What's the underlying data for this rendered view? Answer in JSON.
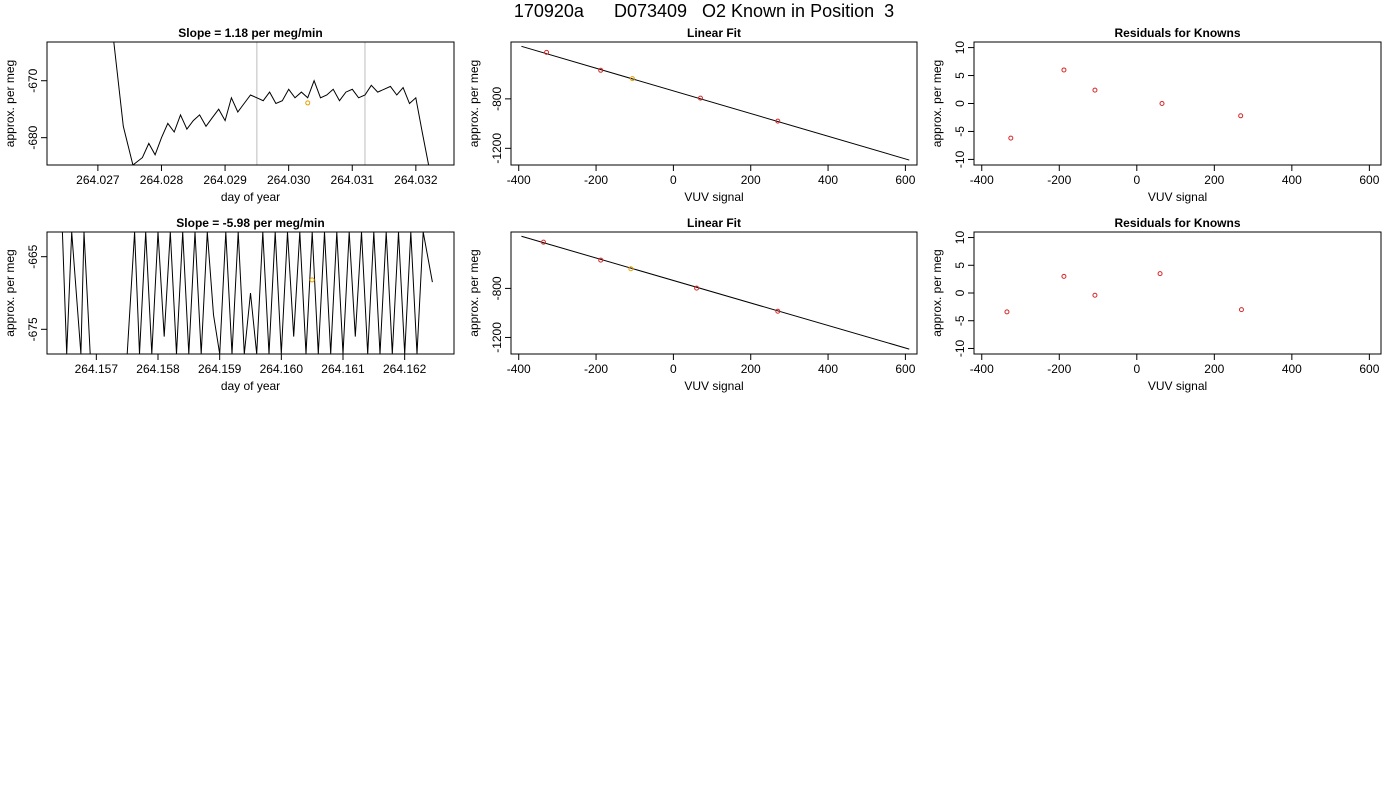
{
  "page": {
    "title": "170920a      D073409   O2 Known in Position  3"
  },
  "colors": {
    "trace": "#000000",
    "marker_orange": "#e69f00",
    "residual_red": "#d62728",
    "vline_gray": "#bdbdbd",
    "axis": "#000000"
  },
  "chart_data": [
    {
      "type": "line",
      "title": "Slope =  1.18  per meg/min",
      "xlabel": "day of year",
      "ylabel": "approx. per meg",
      "xlim": [
        264.0262,
        264.0326
      ],
      "ylim": [
        -684.8,
        -663.2
      ],
      "xticks": [
        264.027,
        264.028,
        264.029,
        264.03,
        264.031,
        264.032
      ],
      "xtick_labels": [
        "264.027",
        "264.028",
        "264.029",
        "264.030",
        "264.031",
        "264.032"
      ],
      "yticks": [
        -670,
        -680
      ],
      "ytick_labels": [
        "-670",
        "-680"
      ],
      "vlines": [
        264.0295,
        264.0312
      ],
      "trace_x": [
        264.02725,
        264.0274,
        264.02755,
        264.0277,
        264.0278,
        264.0279,
        264.028,
        264.0281,
        264.0282,
        264.0283,
        264.0284,
        264.0285,
        264.0286,
        264.0287,
        264.0288,
        264.0289,
        264.029,
        264.0291,
        264.0292,
        264.0293,
        264.0294,
        264.0295,
        264.0296,
        264.0297,
        264.0298,
        264.0299,
        264.03,
        264.0301,
        264.0302,
        264.0303,
        264.0304,
        264.0305,
        264.0306,
        264.0307,
        264.0308,
        264.0309,
        264.031,
        264.0311,
        264.0312,
        264.0313,
        264.0314,
        264.0315,
        264.0316,
        264.0317,
        264.0318,
        264.0319,
        264.032,
        264.0321,
        264.0322
      ],
      "trace_y": [
        -663.2,
        -678,
        -684.8,
        -683.5,
        -681,
        -683,
        -680,
        -677.5,
        -679,
        -676,
        -678.5,
        -677,
        -676,
        -678,
        -676.5,
        -675,
        -677,
        -673,
        -675.5,
        -674,
        -672.5,
        -673,
        -673.5,
        -672,
        -674,
        -673.5,
        -671.5,
        -673,
        -672,
        -673,
        -670,
        -673,
        -672.5,
        -671.5,
        -673.5,
        -672,
        -671.5,
        -673,
        -672.5,
        -670.8,
        -672,
        -671.5,
        -671,
        -672.5,
        -671.2,
        -674,
        -673,
        -679,
        -684.8
      ],
      "orange_point": {
        "x": 264.0303,
        "y": -673.9
      }
    },
    {
      "type": "scatter",
      "title": "Linear Fit",
      "xlabel": "VUV signal",
      "ylabel": "approx. per meg",
      "xlim": [
        -420,
        630
      ],
      "ylim": [
        -1335,
        -340
      ],
      "xticks": [
        -400,
        -200,
        0,
        200,
        400,
        600
      ],
      "xtick_labels": [
        "-400",
        "-200",
        "0",
        "200",
        "400",
        "600"
      ],
      "yticks": [
        -800,
        -1200
      ],
      "ytick_labels": [
        "-800",
        "-1200"
      ],
      "points_x": [
        -328,
        -188,
        -106,
        70,
        270
      ],
      "points_y": [
        -424,
        -569,
        -636,
        -794,
        -980
      ],
      "orange_x": -106,
      "fit_line": {
        "x": [
          -393,
          610
        ],
        "y": [
          -375,
          -1295
        ]
      }
    },
    {
      "type": "scatter",
      "title": "Residuals for Knowns",
      "xlabel": "VUV signal",
      "ylabel": "approx. per meg",
      "xlim": [
        -420,
        630
      ],
      "ylim": [
        -11,
        11
      ],
      "xticks": [
        -400,
        -200,
        0,
        200,
        400,
        600
      ],
      "xtick_labels": [
        "-400",
        "-200",
        "0",
        "200",
        "400",
        "600"
      ],
      "yticks": [
        10,
        5,
        0,
        -5,
        -10
      ],
      "ytick_labels": [
        "10",
        "5",
        "0",
        "-5",
        "-10"
      ],
      "points_x": [
        -325,
        -188,
        -108,
        65,
        268
      ],
      "points_y": [
        -6.2,
        6.0,
        2.4,
        0.0,
        -2.2
      ]
    },
    {
      "type": "line",
      "title": "Slope =  -5.98  per meg/min",
      "xlabel": "day of year",
      "ylabel": "approx. per meg",
      "xlim": [
        264.1562,
        264.1628
      ],
      "ylim": [
        -678.4,
        -661.6
      ],
      "xticks": [
        264.157,
        264.158,
        264.159,
        264.16,
        264.161,
        264.162
      ],
      "xtick_labels": [
        "264.157",
        "264.158",
        "264.159",
        "264.160",
        "264.161",
        "264.162"
      ],
      "yticks": [
        -665,
        -675
      ],
      "ytick_labels": [
        "-665",
        "-675"
      ],
      "trace_x": [
        264.15645,
        264.15652,
        264.1566,
        264.15675,
        264.1568,
        264.1569,
        264.1575,
        264.15762,
        264.1577,
        264.1578,
        264.1579,
        264.158,
        264.1581,
        264.1582,
        264.1583,
        264.1584,
        264.1585,
        264.1586,
        264.1587,
        264.1588,
        264.1589,
        264.159,
        264.1591,
        264.1592,
        264.1593,
        264.1594,
        264.1595,
        264.1596,
        264.1597,
        264.1598,
        264.1599,
        264.16,
        264.1601,
        264.1602,
        264.1603,
        264.1604,
        264.1605,
        264.1606,
        264.1607,
        264.1608,
        264.1609,
        264.161,
        264.1611,
        264.1612,
        264.1613,
        264.1614,
        264.1615,
        264.1616,
        264.1617,
        264.1618,
        264.1619,
        264.162,
        264.1621,
        264.1622,
        264.1623,
        264.16245
      ],
      "trace_y": [
        -661.6,
        -678.4,
        -661.6,
        -678.4,
        -661.6,
        -678.4,
        -678.4,
        -661.6,
        -678.4,
        -661.6,
        -678.4,
        -661.6,
        -676,
        -661.6,
        -678.4,
        -661.6,
        -678.4,
        -661.6,
        -678.4,
        -661.6,
        -673,
        -678.4,
        -661.6,
        -678.4,
        -661.6,
        -678.4,
        -670,
        -678.4,
        -661.6,
        -678.4,
        -661.6,
        -678.4,
        -661.6,
        -676,
        -661.6,
        -678.4,
        -661.6,
        -678.4,
        -661.6,
        -678.4,
        -661.6,
        -678.4,
        -661.6,
        -676,
        -661.6,
        -678.4,
        -661.6,
        -678.4,
        -661.6,
        -678.4,
        -661.6,
        -678.4,
        -661.6,
        -678.4,
        -661.6,
        -668.5
      ],
      "orange_point": {
        "x": 264.1605,
        "y": -668.2
      }
    },
    {
      "type": "scatter",
      "title": "Linear Fit",
      "xlabel": "VUV signal",
      "ylabel": "approx. per meg",
      "xlim": [
        -420,
        630
      ],
      "ylim": [
        -1335,
        -340
      ],
      "xticks": [
        -400,
        -200,
        0,
        200,
        400,
        600
      ],
      "xtick_labels": [
        "-400",
        "-200",
        "0",
        "200",
        "400",
        "600"
      ],
      "yticks": [
        -800,
        -1200
      ],
      "ytick_labels": [
        "-800",
        "-1200"
      ],
      "points_x": [
        -336,
        -188,
        -110,
        60,
        270
      ],
      "points_y": [
        -423,
        -569,
        -640,
        -798,
        -986
      ],
      "orange_x": -110,
      "fit_line": {
        "x": [
          -393,
          610
        ],
        "y": [
          -375,
          -1295
        ]
      }
    },
    {
      "type": "scatter",
      "title": "Residuals for Knowns",
      "xlabel": "VUV signal",
      "ylabel": "approx. per meg",
      "xlim": [
        -420,
        630
      ],
      "ylim": [
        -11,
        11
      ],
      "xticks": [
        -400,
        -200,
        0,
        200,
        400,
        600
      ],
      "xtick_labels": [
        "-400",
        "-200",
        "0",
        "200",
        "400",
        "600"
      ],
      "yticks": [
        10,
        5,
        0,
        -5,
        -10
      ],
      "ytick_labels": [
        "10",
        "5",
        "0",
        "-5",
        "-10"
      ],
      "points_x": [
        -335,
        -188,
        -108,
        60,
        270
      ],
      "points_y": [
        -3.4,
        3.0,
        -0.4,
        3.5,
        -3.0
      ]
    }
  ]
}
